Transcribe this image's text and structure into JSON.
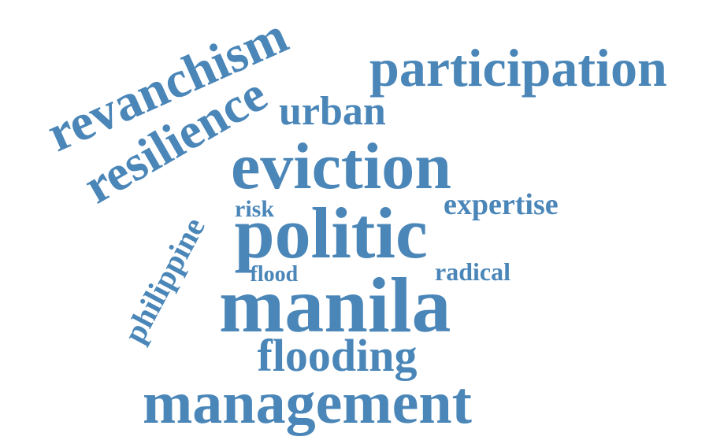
{
  "cloud": {
    "color": "#4a86b8",
    "words": [
      "revanchism",
      "resilience",
      "participation",
      "urban",
      "eviction",
      "risk",
      "expertise",
      "philippine",
      "politic",
      "flood",
      "radical",
      "manila",
      "flooding",
      "management"
    ]
  }
}
